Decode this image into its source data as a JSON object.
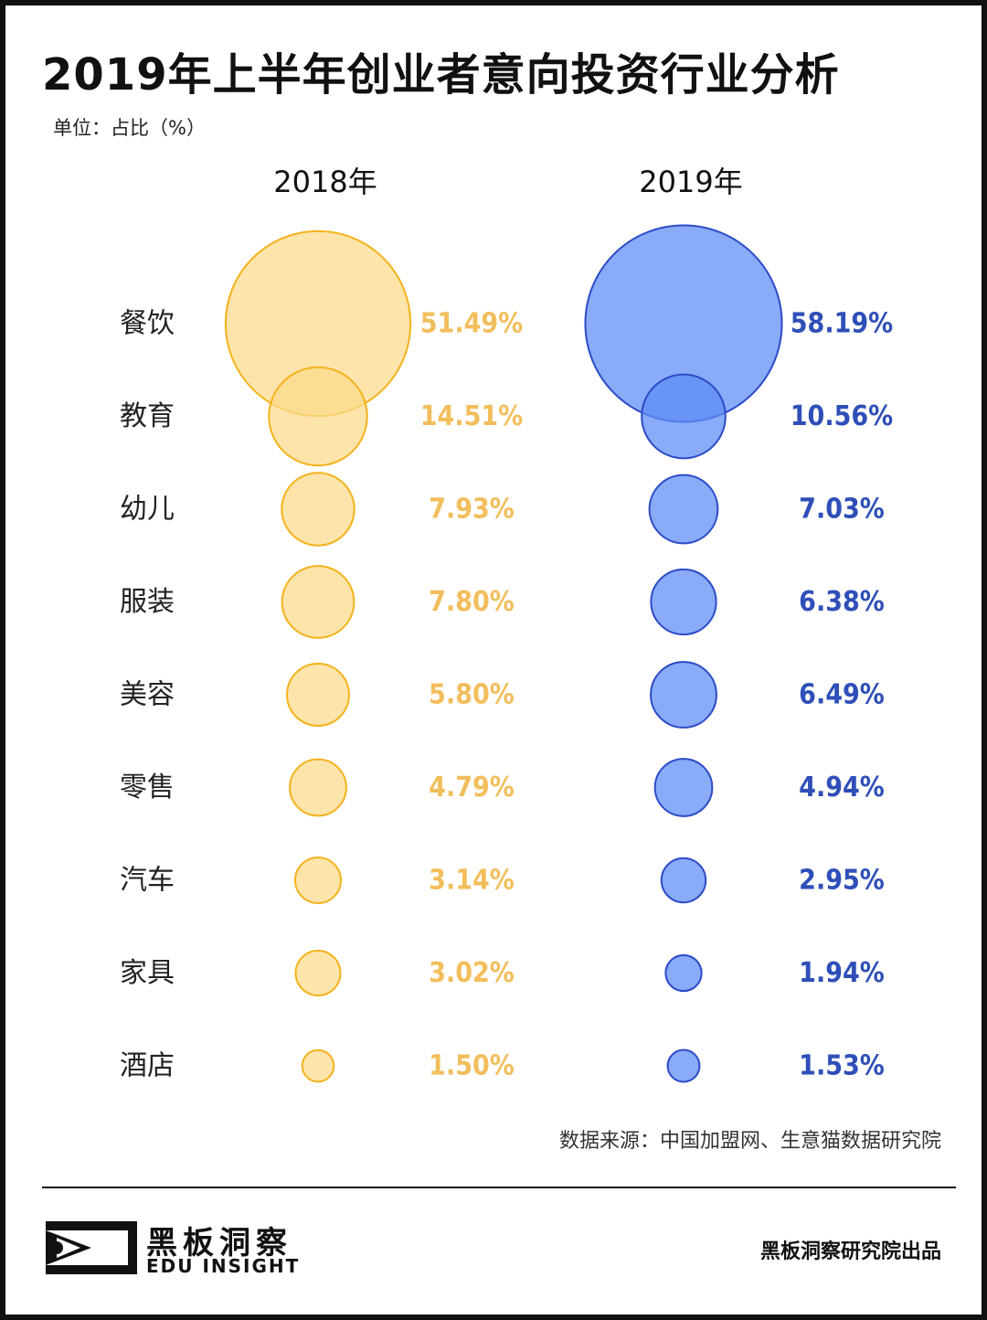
{
  "header": {
    "title": "2019年上半年创业者意向投资行业分析",
    "unit": "单位：占比（%）"
  },
  "chart_data": {
    "type": "bubble",
    "title": "2019年上半年创业者意向投资行业分析",
    "unit": "单位：占比（%）",
    "categories": [
      "餐饮",
      "教育",
      "幼儿",
      "服装",
      "美容",
      "零售",
      "汽车",
      "家具",
      "酒店"
    ],
    "series": [
      {
        "name": "2018年",
        "color": "#F5B21B",
        "fill": "#FBD98A",
        "text_color": "#F2BE5C",
        "values": [
          51.49,
          14.51,
          7.93,
          7.8,
          5.8,
          4.79,
          3.14,
          3.02,
          1.5
        ],
        "labels": [
          "51.49%",
          "14.51%",
          "7.93%",
          "7.80%",
          "5.80%",
          "4.79%",
          "3.14%",
          "3.02%",
          "1.50%"
        ]
      },
      {
        "name": "2019年",
        "color": "#2C4BC7",
        "fill": "#5B8BF5",
        "text_color": "#2F4FB8",
        "values": [
          58.19,
          10.56,
          7.03,
          6.38,
          6.49,
          4.94,
          2.95,
          1.94,
          1.53
        ],
        "labels": [
          "58.19%",
          "10.56%",
          "7.03%",
          "6.38%",
          "6.49%",
          "4.94%",
          "2.95%",
          "1.94%",
          "1.53%"
        ]
      }
    ]
  },
  "footer": {
    "source": "数据来源：中国加盟网、生意猫数据研究院",
    "brand_cn": "黑板洞察",
    "brand_en": "EDU INSIGHT",
    "credit": "黑板洞察研究院出品"
  }
}
